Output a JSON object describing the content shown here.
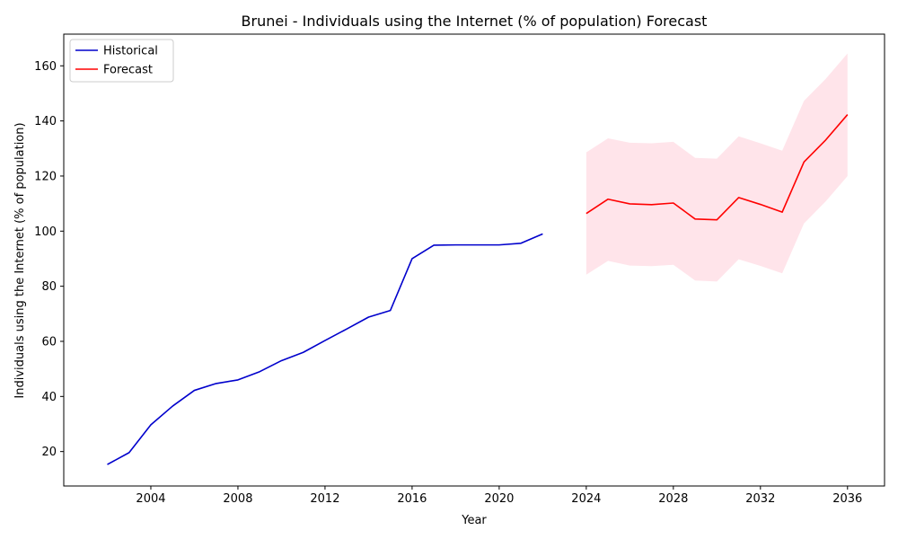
{
  "chart_data": {
    "type": "line",
    "title": "Brunei - Individuals using the Internet (% of population) Forecast",
    "xlabel": "Year",
    "ylabel": "Individuals using the Internet (% of population)",
    "xlim": [
      2000.0,
      2037.7
    ],
    "ylim": [
      7.5,
      171.5
    ],
    "xticks": [
      2004,
      2008,
      2012,
      2016,
      2020,
      2024,
      2028,
      2032,
      2036
    ],
    "yticks": [
      20,
      40,
      60,
      80,
      100,
      120,
      140,
      160
    ],
    "grid": false,
    "legend_position": "top-left",
    "series": [
      {
        "name": "Historical",
        "color": "#0000cc",
        "x": [
          2002,
          2003,
          2004,
          2005,
          2006,
          2007,
          2008,
          2009,
          2010,
          2011,
          2012,
          2013,
          2014,
          2015,
          2016,
          2017,
          2018,
          2019,
          2020,
          2021,
          2022
        ],
        "y": [
          15.3,
          19.6,
          29.7,
          36.5,
          42.2,
          44.7,
          46.0,
          49.0,
          53.0,
          56.0,
          60.3,
          64.5,
          68.8,
          71.2,
          90.0,
          94.9,
          95.0,
          95.0,
          95.0,
          95.6,
          99.0
        ]
      },
      {
        "name": "Forecast",
        "color": "#ff0000",
        "x": [
          2024,
          2025,
          2026,
          2027,
          2028,
          2029,
          2030,
          2031,
          2032,
          2033,
          2034,
          2035,
          2036
        ],
        "y": [
          106.4,
          111.6,
          109.9,
          109.6,
          110.2,
          104.4,
          104.1,
          112.2,
          109.7,
          106.9,
          125.1,
          133.1,
          142.3
        ],
        "lower": [
          84.2,
          89.2,
          87.5,
          87.3,
          87.8,
          82.1,
          81.7,
          89.8,
          87.4,
          84.7,
          102.8,
          110.8,
          120.0
        ],
        "upper": [
          128.6,
          133.7,
          132.1,
          131.9,
          132.4,
          126.6,
          126.3,
          134.4,
          131.9,
          129.2,
          147.3,
          155.3,
          164.5
        ],
        "band_color": "#ffe4ea"
      }
    ]
  }
}
